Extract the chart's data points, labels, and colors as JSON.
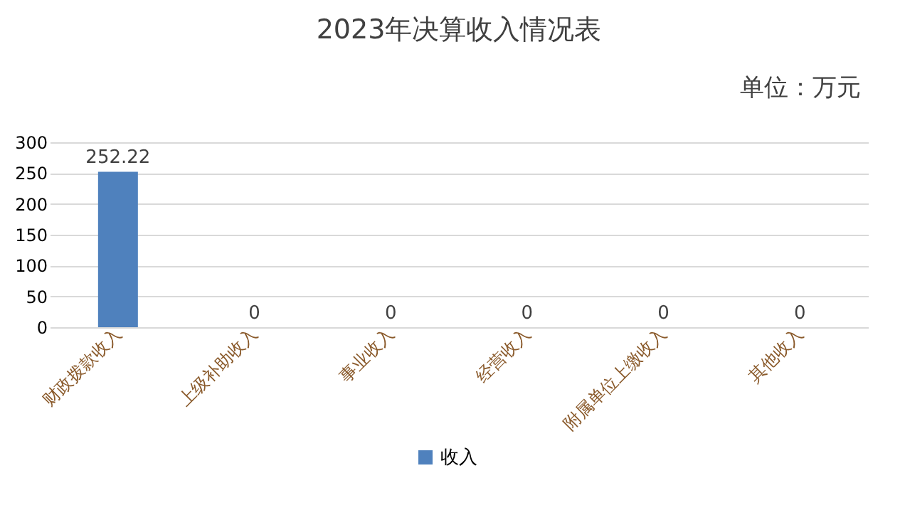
{
  "chart_data": {
    "type": "bar",
    "title": "2023年决算收入情况表",
    "annotations": [
      "单位：万元"
    ],
    "categories": [
      "财政拨款收入",
      "上级补助收入",
      "事业收入",
      "经营收入",
      "附属单位上缴收入",
      "其他收入"
    ],
    "series": [
      {
        "name": "收入",
        "color": "#4f81bd",
        "values": [
          252.22,
          0,
          0,
          0,
          0,
          0
        ]
      }
    ],
    "ylim": [
      0,
      300
    ],
    "yticks": [
      0,
      50,
      100,
      150,
      200,
      250,
      300
    ],
    "grid": "y",
    "legend": "bottom",
    "data_labels": true
  }
}
